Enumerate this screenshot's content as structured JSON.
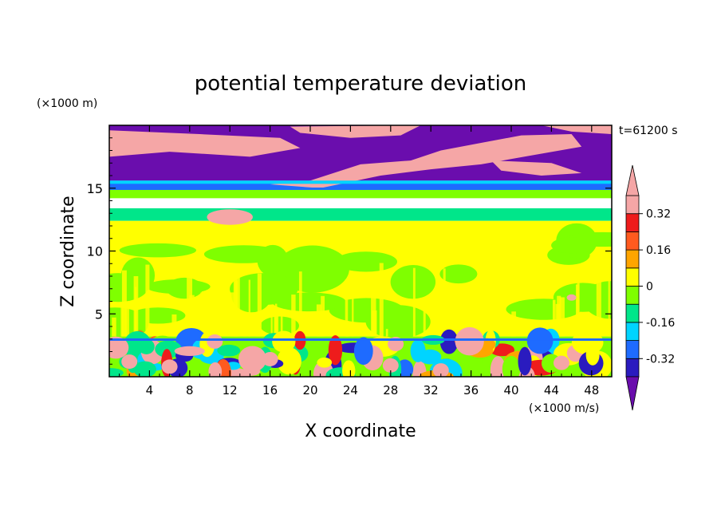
{
  "chart_data": {
    "type": "heatmap",
    "title": "potential temperature deviation",
    "xlabel": "X coordinate",
    "ylabel": "Z coordinate",
    "x_unit": "(×1000 m/s)",
    "y_unit": "(×1000 m)",
    "time_label": "t=61200 s",
    "xlim": [
      0,
      50
    ],
    "ylim": [
      0,
      20
    ],
    "x_ticks": [
      4,
      8,
      12,
      16,
      20,
      24,
      28,
      32,
      36,
      40,
      44,
      48
    ],
    "y_ticks": [
      5,
      10,
      15
    ],
    "colorbar": {
      "levels": [
        -0.4,
        -0.32,
        -0.24,
        -0.16,
        -0.08,
        0,
        0.08,
        0.16,
        0.24,
        0.32,
        0.4
      ],
      "tick_labels": [
        "0.32",
        "0.16",
        "0",
        "-0.16",
        "-0.32"
      ],
      "tick_values": [
        0.32,
        0.16,
        0,
        -0.16,
        -0.32
      ],
      "colors": [
        "#6a0dad",
        "#2a1bbf",
        "#1e6bff",
        "#00d4ff",
        "#00e68a",
        "#7fff00",
        "#ffff00",
        "#ffa500",
        "#ff5a1f",
        "#ee1c1c",
        "#f5a6a6"
      ],
      "extend": "both"
    },
    "layers": [
      {
        "z_range": [
          15.6,
          20
        ],
        "class": "upper",
        "description_values": [
          -0.4,
          0.4
        ]
      },
      {
        "z_range": [
          15.0,
          15.6
        ],
        "value": -0.32
      },
      {
        "z_range": [
          14.2,
          15.0
        ],
        "value": -0.08
      },
      {
        "z_range": [
          12.4,
          13.4
        ],
        "value": -0.16
      },
      {
        "z_range": [
          3.2,
          12.4
        ],
        "value": 0.04
      },
      {
        "z_range": [
          0,
          3.2
        ],
        "class": "mixed",
        "description_values": [
          -0.4,
          0.4
        ]
      }
    ]
  }
}
